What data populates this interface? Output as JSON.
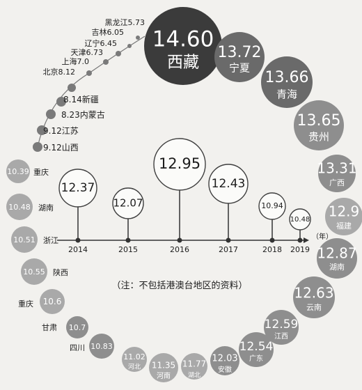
{
  "chart_data": [
    {
      "type": "bubble-ring",
      "unit": "",
      "categories": [
        "西藏",
        "宁夏",
        "青海",
        "贵州",
        "广西",
        "福建",
        "湖南",
        "云南",
        "江西",
        "广东",
        "安徽",
        "湖北",
        "河南",
        "河北",
        "四川",
        "甘肃",
        "重庆",
        "陕西",
        "浙江",
        "湖南",
        "重庆",
        "山西",
        "江苏",
        "内蒙古",
        "新疆",
        "北京",
        "上海",
        "天津",
        "辽宁",
        "吉林",
        "黑龙江"
      ],
      "values": [
        14.6,
        13.72,
        13.66,
        13.65,
        13.31,
        12.9,
        12.87,
        12.63,
        12.59,
        12.54,
        12.03,
        11.77,
        11.35,
        11.02,
        10.83,
        10.7,
        10.6,
        10.55,
        10.51,
        10.48,
        10.39,
        9.12,
        9.12,
        8.23,
        8.14,
        8.12,
        7.0,
        6.73,
        6.45,
        6.05,
        5.73
      ],
      "labels": [
        "14.60",
        "13.72",
        "13.66",
        "13.65",
        "13.31",
        "12.9",
        "12.87",
        "12.63",
        "12.59",
        "12.54",
        "12.03",
        "11.77",
        "11.35",
        "11.02",
        "10.83",
        "10.7",
        "10.6",
        "10.55",
        "10.51",
        "10.48",
        "10.39",
        "9.12",
        "9.12",
        "8.23",
        "8.14",
        "8.12",
        "7.0",
        "6.73",
        "6.45",
        "6.05",
        "5.73"
      ],
      "name_labels": [
        "西藏",
        "宁夏",
        "青海",
        "贵州",
        "广西",
        "福建",
        "湖南",
        "云南",
        "江西",
        "广东",
        "安徽",
        "湖北",
        "河南",
        "河北",
        "四川",
        "甘肃",
        "重庆",
        "陕西",
        "浙江",
        "湖南",
        "重庆",
        "山西",
        "江苏",
        "内蒙古",
        "新疆",
        "北京",
        "上海",
        "天津",
        "辽宁",
        "吉林",
        "黑龙江"
      ],
      "combined_labels": [
        "9.12山西",
        "9.12江苏",
        "8.23内蒙古",
        "8.14新疆",
        "北京8.12",
        "上海7.0",
        "天津6.73",
        "辽宁6.45",
        "吉林6.05",
        "黑龙江5.73"
      ],
      "annotation": "（注：不包括港澳台地区的资料）"
    },
    {
      "type": "timeline",
      "x": [
        "2014",
        "2015",
        "2016",
        "2017",
        "2018",
        "2019"
      ],
      "values": [
        12.37,
        12.07,
        12.95,
        12.43,
        10.94,
        10.48
      ],
      "labels": [
        "12.37",
        "12.07",
        "12.95",
        "12.43",
        "10.94",
        "10.48"
      ],
      "unit_label": "（年）"
    }
  ],
  "colors": {
    "big_dark": "#3b3b3b",
    "big_mid": "#6a6a6a",
    "medium": "#8e8e8e",
    "light": "#a9a9a9",
    "small_dot": "#7a7a7a",
    "outline": "#3f3f3f",
    "text_dark": "#1c1c1c",
    "text_light": "#ffffff"
  }
}
